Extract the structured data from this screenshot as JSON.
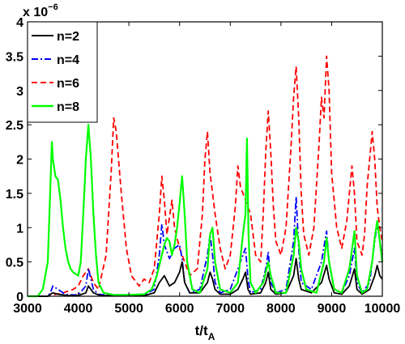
{
  "chart_data": {
    "type": "line",
    "title": "",
    "xlabel": "t/t",
    "xlabel_sub": "A",
    "ylabel": "",
    "y_multiplier": "x 10",
    "y_multiplier_exp": "−6",
    "xlim": [
      3000,
      10000
    ],
    "ylim": [
      0,
      4
    ],
    "x_ticks": [
      3000,
      4000,
      5000,
      6000,
      7000,
      8000,
      9000,
      10000
    ],
    "y_ticks": [
      0,
      0.5,
      1,
      1.5,
      2,
      2.5,
      3,
      3.5,
      4
    ],
    "y_tick_labels": [
      "0",
      "0.5",
      "1",
      "1.5",
      "2",
      "2.5",
      "3",
      "3.5",
      "4"
    ],
    "grid": false,
    "legend_position": "top-left",
    "series": [
      {
        "name": "n=2",
        "color": "#000000",
        "style": "solid",
        "points": [
          [
            3000,
            0
          ],
          [
            3400,
            0
          ],
          [
            3450,
            0.03
          ],
          [
            3500,
            0.05
          ],
          [
            3600,
            0.03
          ],
          [
            3700,
            0.02
          ],
          [
            3800,
            0.01
          ],
          [
            4000,
            0.01
          ],
          [
            4150,
            0.05
          ],
          [
            4200,
            0.15
          ],
          [
            4250,
            0.1
          ],
          [
            4300,
            0.05
          ],
          [
            4400,
            0.02
          ],
          [
            4500,
            0.01
          ],
          [
            4800,
            0.01
          ],
          [
            5000,
            0.01
          ],
          [
            5300,
            0.01
          ],
          [
            5500,
            0.05
          ],
          [
            5600,
            0.2
          ],
          [
            5700,
            0.3
          ],
          [
            5800,
            0.15
          ],
          [
            5900,
            0.2
          ],
          [
            6000,
            0.35
          ],
          [
            6050,
            0.5
          ],
          [
            6100,
            0.2
          ],
          [
            6200,
            0.05
          ],
          [
            6400,
            0.05
          ],
          [
            6550,
            0.2
          ],
          [
            6600,
            0.35
          ],
          [
            6650,
            0.25
          ],
          [
            6700,
            0.1
          ],
          [
            6800,
            0.03
          ],
          [
            7000,
            0.03
          ],
          [
            7150,
            0.1
          ],
          [
            7250,
            0.25
          ],
          [
            7300,
            0.35
          ],
          [
            7350,
            0.1
          ],
          [
            7400,
            0.03
          ],
          [
            7600,
            0.05
          ],
          [
            7700,
            0.2
          ],
          [
            7750,
            0.35
          ],
          [
            7800,
            0.1
          ],
          [
            7900,
            0.03
          ],
          [
            8100,
            0.05
          ],
          [
            8250,
            0.3
          ],
          [
            8300,
            0.55
          ],
          [
            8350,
            0.25
          ],
          [
            8400,
            0.1
          ],
          [
            8600,
            0.05
          ],
          [
            8800,
            0.2
          ],
          [
            8900,
            0.45
          ],
          [
            8950,
            0.25
          ],
          [
            9050,
            0.05
          ],
          [
            9200,
            0.03
          ],
          [
            9350,
            0.15
          ],
          [
            9450,
            0.4
          ],
          [
            9500,
            0.1
          ],
          [
            9600,
            0.03
          ],
          [
            9750,
            0.1
          ],
          [
            9850,
            0.3
          ],
          [
            9900,
            0.45
          ],
          [
            9950,
            0.3
          ],
          [
            10000,
            0.25
          ]
        ]
      },
      {
        "name": "n=4",
        "color": "#0000ff",
        "style": "dashdot",
        "points": [
          [
            3000,
            0
          ],
          [
            3400,
            0
          ],
          [
            3450,
            0.05
          ],
          [
            3500,
            0.15
          ],
          [
            3600,
            0.1
          ],
          [
            3700,
            0.05
          ],
          [
            3800,
            0.02
          ],
          [
            4000,
            0.02
          ],
          [
            4150,
            0.15
          ],
          [
            4200,
            0.4
          ],
          [
            4250,
            0.25
          ],
          [
            4300,
            0.1
          ],
          [
            4400,
            0.03
          ],
          [
            4500,
            0.02
          ],
          [
            4800,
            0.02
          ],
          [
            5000,
            0.02
          ],
          [
            5300,
            0.02
          ],
          [
            5500,
            0.1
          ],
          [
            5600,
            0.6
          ],
          [
            5650,
            1.05
          ],
          [
            5700,
            0.75
          ],
          [
            5800,
            0.55
          ],
          [
            5900,
            0.7
          ],
          [
            6000,
            0.75
          ],
          [
            6050,
            0.55
          ],
          [
            6100,
            0.2
          ],
          [
            6200,
            0.05
          ],
          [
            6400,
            0.1
          ],
          [
            6550,
            0.6
          ],
          [
            6600,
            0.9
          ],
          [
            6650,
            0.6
          ],
          [
            6700,
            0.2
          ],
          [
            6800,
            0.05
          ],
          [
            7000,
            0.1
          ],
          [
            7150,
            0.4
          ],
          [
            7250,
            0.6
          ],
          [
            7300,
            0.7
          ],
          [
            7350,
            0.25
          ],
          [
            7400,
            0.05
          ],
          [
            7600,
            0.1
          ],
          [
            7700,
            0.4
          ],
          [
            7750,
            0.65
          ],
          [
            7800,
            0.2
          ],
          [
            7900,
            0.05
          ],
          [
            8100,
            0.1
          ],
          [
            8250,
            0.8
          ],
          [
            8300,
            1.45
          ],
          [
            8350,
            0.7
          ],
          [
            8400,
            0.2
          ],
          [
            8600,
            0.1
          ],
          [
            8800,
            0.5
          ],
          [
            8900,
            0.95
          ],
          [
            8950,
            0.5
          ],
          [
            9050,
            0.1
          ],
          [
            9200,
            0.05
          ],
          [
            9350,
            0.3
          ],
          [
            9450,
            0.7
          ],
          [
            9500,
            0.2
          ],
          [
            9600,
            0.05
          ],
          [
            9750,
            0.2
          ],
          [
            9850,
            0.8
          ],
          [
            9900,
            1.05
          ],
          [
            9950,
            0.8
          ],
          [
            10000,
            0.6
          ]
        ]
      },
      {
        "name": "n=6",
        "color": "#ff0000",
        "style": "dashed",
        "points": [
          [
            3000,
            0
          ],
          [
            3400,
            0
          ],
          [
            3500,
            0.02
          ],
          [
            3700,
            0.05
          ],
          [
            3900,
            0.1
          ],
          [
            4000,
            0.15
          ],
          [
            4100,
            0.3
          ],
          [
            4200,
            0.4
          ],
          [
            4300,
            0.2
          ],
          [
            4400,
            0.1
          ],
          [
            4550,
            0.6
          ],
          [
            4650,
            1.8
          ],
          [
            4700,
            2.6
          ],
          [
            4750,
            2.4
          ],
          [
            4850,
            1.5
          ],
          [
            4950,
            0.7
          ],
          [
            5050,
            0.3
          ],
          [
            5200,
            0.15
          ],
          [
            5300,
            0.25
          ],
          [
            5400,
            0.2
          ],
          [
            5500,
            0.4
          ],
          [
            5600,
            1.2
          ],
          [
            5650,
            1.75
          ],
          [
            5700,
            1.4
          ],
          [
            5750,
            0.9
          ],
          [
            5850,
            1.4
          ],
          [
            5900,
            1.0
          ],
          [
            6000,
            0.7
          ],
          [
            6100,
            0.5
          ],
          [
            6200,
            0.3
          ],
          [
            6350,
            0.4
          ],
          [
            6450,
            1.2
          ],
          [
            6500,
            2.0
          ],
          [
            6550,
            2.4
          ],
          [
            6600,
            1.8
          ],
          [
            6700,
            1.2
          ],
          [
            6800,
            0.7
          ],
          [
            6900,
            0.4
          ],
          [
            7000,
            0.6
          ],
          [
            7100,
            1.3
          ],
          [
            7150,
            1.9
          ],
          [
            7200,
            1.6
          ],
          [
            7300,
            1.4
          ],
          [
            7400,
            1.2
          ],
          [
            7500,
            0.6
          ],
          [
            7600,
            0.5
          ],
          [
            7650,
            1.2
          ],
          [
            7700,
            2.1
          ],
          [
            7750,
            2.7
          ],
          [
            7800,
            2.1
          ],
          [
            7850,
            1.3
          ],
          [
            7900,
            0.8
          ],
          [
            8000,
            0.6
          ],
          [
            8100,
            1.0
          ],
          [
            8200,
            2.2
          ],
          [
            8250,
            2.9
          ],
          [
            8300,
            3.35
          ],
          [
            8350,
            2.6
          ],
          [
            8400,
            1.5
          ],
          [
            8450,
            0.9
          ],
          [
            8550,
            0.6
          ],
          [
            8650,
            1.0
          ],
          [
            8750,
            2.2
          ],
          [
            8800,
            2.9
          ],
          [
            8850,
            2.6
          ],
          [
            8900,
            3.5
          ],
          [
            8950,
            3.0
          ],
          [
            9000,
            1.8
          ],
          [
            9100,
            1.0
          ],
          [
            9200,
            0.7
          ],
          [
            9300,
            1.1
          ],
          [
            9350,
            1.5
          ],
          [
            9400,
            1.9
          ],
          [
            9450,
            1.5
          ],
          [
            9500,
            0.8
          ],
          [
            9600,
            0.6
          ],
          [
            9650,
            0.9
          ],
          [
            9700,
            1.6
          ],
          [
            9750,
            2.0
          ],
          [
            9800,
            2.4
          ],
          [
            9850,
            2.0
          ],
          [
            9900,
            1.3
          ],
          [
            9950,
            1.0
          ],
          [
            10000,
            0.8
          ]
        ]
      },
      {
        "name": "n=8",
        "color": "#00ff00",
        "style": "solid",
        "points": [
          [
            3000,
            0
          ],
          [
            3200,
            0
          ],
          [
            3300,
            0.1
          ],
          [
            3400,
            0.5
          ],
          [
            3450,
            1.6
          ],
          [
            3480,
            2.25
          ],
          [
            3500,
            2.0
          ],
          [
            3550,
            1.75
          ],
          [
            3600,
            1.7
          ],
          [
            3650,
            1.4
          ],
          [
            3700,
            1.0
          ],
          [
            3750,
            0.7
          ],
          [
            3800,
            0.5
          ],
          [
            3850,
            0.4
          ],
          [
            3900,
            0.35
          ],
          [
            4000,
            0.3
          ],
          [
            4050,
            0.5
          ],
          [
            4100,
            1.2
          ],
          [
            4150,
            2.0
          ],
          [
            4200,
            2.5
          ],
          [
            4250,
            2.0
          ],
          [
            4300,
            1.2
          ],
          [
            4350,
            0.6
          ],
          [
            4400,
            0.2
          ],
          [
            4500,
            0.05
          ],
          [
            4700,
            0.02
          ],
          [
            5000,
            0.02
          ],
          [
            5300,
            0.03
          ],
          [
            5450,
            0.1
          ],
          [
            5550,
            0.3
          ],
          [
            5650,
            0.6
          ],
          [
            5700,
            0.75
          ],
          [
            5750,
            0.85
          ],
          [
            5800,
            0.8
          ],
          [
            5850,
            0.6
          ],
          [
            5900,
            0.75
          ],
          [
            5950,
            1.0
          ],
          [
            6000,
            1.35
          ],
          [
            6050,
            1.75
          ],
          [
            6100,
            1.2
          ],
          [
            6150,
            0.5
          ],
          [
            6250,
            0.1
          ],
          [
            6400,
            0.05
          ],
          [
            6550,
            0.4
          ],
          [
            6600,
            0.9
          ],
          [
            6650,
            1.0
          ],
          [
            6700,
            0.5
          ],
          [
            6800,
            0.1
          ],
          [
            7000,
            0.05
          ],
          [
            7150,
            0.2
          ],
          [
            7250,
            0.9
          ],
          [
            7300,
            1.2
          ],
          [
            7330,
            2.3
          ],
          [
            7360,
            0.9
          ],
          [
            7400,
            0.2
          ],
          [
            7500,
            0.05
          ],
          [
            7650,
            0.2
          ],
          [
            7750,
            0.5
          ],
          [
            7800,
            0.3
          ],
          [
            7900,
            0.05
          ],
          [
            8100,
            0.05
          ],
          [
            8250,
            0.6
          ],
          [
            8300,
            1.0
          ],
          [
            8350,
            0.8
          ],
          [
            8400,
            0.4
          ],
          [
            8500,
            0.1
          ],
          [
            8700,
            0.05
          ],
          [
            8850,
            0.5
          ],
          [
            8900,
            0.85
          ],
          [
            8950,
            0.5
          ],
          [
            9050,
            0.1
          ],
          [
            9200,
            0.05
          ],
          [
            9350,
            0.4
          ],
          [
            9450,
            0.95
          ],
          [
            9500,
            0.3
          ],
          [
            9600,
            0.05
          ],
          [
            9700,
            0.1
          ],
          [
            9800,
            0.5
          ],
          [
            9850,
            0.85
          ],
          [
            9900,
            1.1
          ],
          [
            9950,
            0.8
          ],
          [
            10000,
            0.5
          ]
        ]
      }
    ]
  }
}
